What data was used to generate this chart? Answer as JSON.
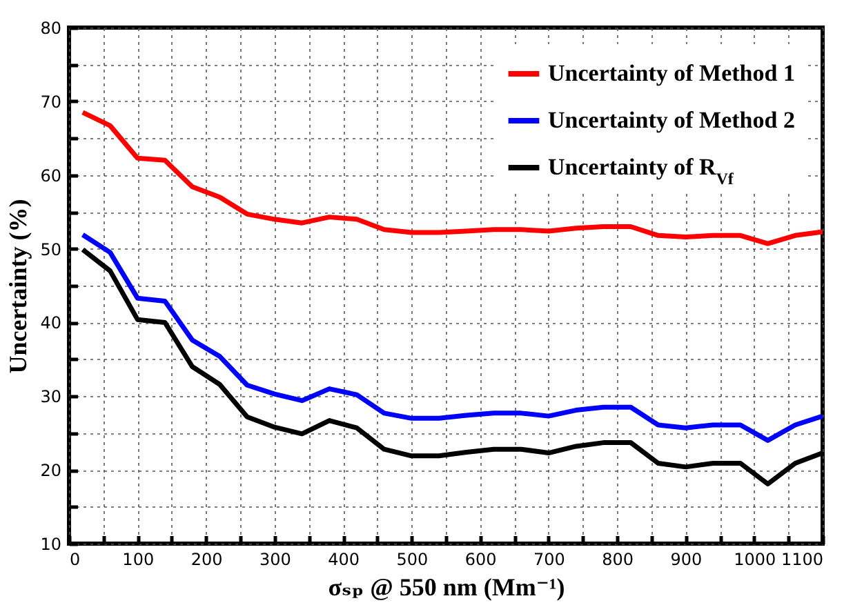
{
  "chart_data": {
    "type": "line",
    "xlabel": "σₛₚ @ 550 nm (Mm⁻¹)",
    "ylabel": "Uncertainty (%)",
    "x": [
      20,
      60,
      100,
      140,
      180,
      220,
      260,
      300,
      340,
      380,
      420,
      460,
      500,
      540,
      580,
      620,
      660,
      700,
      740,
      780,
      820,
      860,
      900,
      940,
      980,
      1020,
      1060,
      1100
    ],
    "series": [
      {
        "name": "Uncertainty of Method 1",
        "color": "#ff0000",
        "values": [
          68.5,
          66.7,
          62.3,
          62,
          58.4,
          57,
          54.7,
          54,
          53.5,
          54.3,
          54,
          52.6,
          52.2,
          52.2,
          52.4,
          52.6,
          52.6,
          52.4,
          52.8,
          53,
          53,
          51.8,
          51.6,
          51.8,
          51.8,
          50.7,
          51.8,
          52.3
        ]
      },
      {
        "name": "Uncertainty of Method 2",
        "color": "#0000ff",
        "values": [
          51.9,
          49.5,
          43.3,
          42.9,
          37.6,
          35.4,
          31.5,
          30.3,
          29.4,
          31,
          30.2,
          27.7,
          27,
          27,
          27.4,
          27.7,
          27.7,
          27.3,
          28.1,
          28.5,
          28.5,
          26.1,
          25.7,
          26.1,
          26.1,
          24,
          26.1,
          27.3
        ]
      },
      {
        "name": "Uncertainty of R$_{Vf}$",
        "color": "#000000",
        "values": [
          49.9,
          47,
          40.4,
          40,
          34,
          31.6,
          27.2,
          25.8,
          24.9,
          26.7,
          25.7,
          22.8,
          21.9,
          21.9,
          22.4,
          22.8,
          22.8,
          22.3,
          23.2,
          23.7,
          23.7,
          20.9,
          20.4,
          20.9,
          20.9,
          18.1,
          20.9,
          22.3
        ]
      }
    ],
    "xlim": [
      0,
      1100
    ],
    "xticks": [
      0,
      {
        "value": 50,
        "label": null
      },
      100,
      {
        "value": 150,
        "label": null
      },
      200,
      {
        "value": 250,
        "label": null
      },
      300,
      {
        "value": 350,
        "label": null
      },
      400,
      {
        "value": 450,
        "label": null
      },
      500,
      {
        "value": 550,
        "label": null
      },
      600,
      {
        "value": 650,
        "label": null
      },
      700,
      {
        "value": 750,
        "label": null
      },
      800,
      {
        "value": 850,
        "label": null
      },
      900,
      {
        "value": 950,
        "label": null
      },
      1000,
      {
        "value": 1050,
        "label": null
      },
      1100
    ],
    "ylim": [
      10,
      80
    ],
    "yticks": [
      10,
      {
        "value": 15,
        "label": null
      },
      20,
      {
        "value": 25,
        "label": null
      },
      30,
      {
        "value": 35,
        "label": null
      },
      40,
      {
        "value": 45,
        "label": null
      },
      50,
      {
        "value": 55,
        "label": null
      },
      60,
      {
        "value": 65,
        "label": null
      },
      70,
      {
        "value": 75,
        "label": null
      },
      80
    ],
    "grid": true,
    "legend": "top right",
    "line_style": "solid"
  }
}
